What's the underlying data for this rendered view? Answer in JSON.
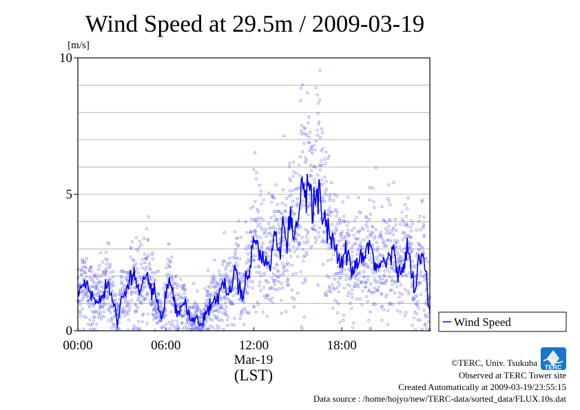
{
  "chart_data": {
    "type": "scatter",
    "title": "Wind Speed at 29.5m / 2009-03-19",
    "y_unit": "[m/s]",
    "ylim": [
      0,
      10
    ],
    "xlim": [
      0,
      24
    ],
    "y_ticks": [
      {
        "value": 0,
        "label": "0"
      },
      {
        "value": 5,
        "label": "5"
      },
      {
        "value": 10,
        "label": "10"
      }
    ],
    "y_gridlines": [
      1,
      2,
      3,
      4,
      5,
      6,
      7,
      8,
      9
    ],
    "x_ticks": [
      {
        "value": 0,
        "label": "00:00"
      },
      {
        "value": 6,
        "label": "06:00"
      },
      {
        "value": 12,
        "label": "12:00"
      },
      {
        "value": 18,
        "label": "18:00"
      }
    ],
    "x_date_label": "Mar-19",
    "xlabel": "(LST)",
    "grid": true,
    "legend_position": "right-bottom",
    "series": [
      {
        "name": "Wind Speed",
        "style": "scatter + line",
        "color": "#0000ee",
        "point_color": "#6f6ff0",
        "x": [
          0.0,
          0.25,
          0.5,
          0.75,
          1.0,
          1.25,
          1.5,
          1.75,
          2.0,
          2.25,
          2.5,
          2.7,
          3.0,
          3.25,
          3.5,
          3.75,
          4.0,
          4.25,
          4.5,
          4.75,
          5.0,
          5.25,
          5.5,
          5.75,
          6.0,
          6.25,
          6.5,
          6.75,
          7.0,
          7.25,
          7.5,
          7.75,
          8.0,
          8.25,
          8.5,
          8.75,
          9.0,
          9.25,
          9.5,
          9.75,
          10.0,
          10.25,
          10.5,
          10.75,
          11.0,
          11.25,
          11.5,
          11.75,
          12.0,
          12.25,
          12.5,
          12.75,
          13.0,
          13.25,
          13.5,
          13.75,
          14.0,
          14.25,
          14.5,
          14.75,
          15.0,
          15.25,
          15.5,
          15.75,
          16.0,
          16.25,
          16.5,
          16.75,
          17.0,
          17.25,
          17.5,
          17.75,
          18.0,
          18.25,
          18.5,
          18.75,
          19.0,
          19.25,
          19.5,
          19.75,
          20.0,
          20.25,
          20.5,
          20.75,
          21.0,
          21.25,
          21.5,
          21.75,
          22.0,
          22.25,
          22.5,
          22.75,
          23.0,
          23.25,
          23.5,
          23.75,
          23.95
        ],
        "y": [
          1.3,
          1.6,
          1.8,
          1.5,
          1.2,
          1.1,
          1.3,
          1.2,
          1.8,
          1.4,
          1.0,
          0.3,
          1.5,
          1.3,
          1.8,
          1.9,
          1.7,
          1.4,
          1.9,
          2.0,
          1.6,
          1.3,
          0.7,
          0.4,
          1.4,
          1.7,
          1.2,
          0.6,
          0.8,
          1.1,
          0.6,
          0.4,
          0.5,
          0.3,
          0.2,
          0.7,
          0.8,
          1.2,
          1.0,
          1.6,
          1.7,
          1.3,
          1.5,
          2.2,
          1.8,
          1.2,
          2.0,
          2.4,
          3.4,
          3.2,
          2.6,
          2.8,
          2.4,
          3.0,
          3.3,
          2.9,
          3.6,
          3.2,
          3.8,
          3.4,
          4.2,
          5.0,
          5.5,
          5.2,
          4.8,
          4.9,
          5.3,
          4.2,
          3.8,
          3.3,
          3.0,
          2.7,
          2.5,
          2.9,
          2.5,
          2.1,
          2.4,
          2.7,
          2.6,
          2.8,
          3.0,
          2.6,
          2.2,
          2.5,
          2.4,
          2.8,
          2.9,
          2.3,
          2.2,
          2.7,
          3.1,
          2.2,
          1.3,
          2.5,
          2.9,
          1.9,
          0.7
        ]
      }
    ]
  },
  "footer": {
    "line1": "©TERC, Univ. Tsukuba",
    "line2": "Observed at TERC Tower site",
    "line3": "Created Automatically at 2009-03-19/23:55:15",
    "line4": "Data source : /home/hojyo/new/TERC-data/sorted_data/FLUX.10s.dat"
  },
  "logo": {
    "text": "TERC"
  },
  "colors": {
    "line": "#0000ee",
    "points": "#6f6ff0",
    "grid": "#b4b4b4",
    "axis": "#000000"
  }
}
